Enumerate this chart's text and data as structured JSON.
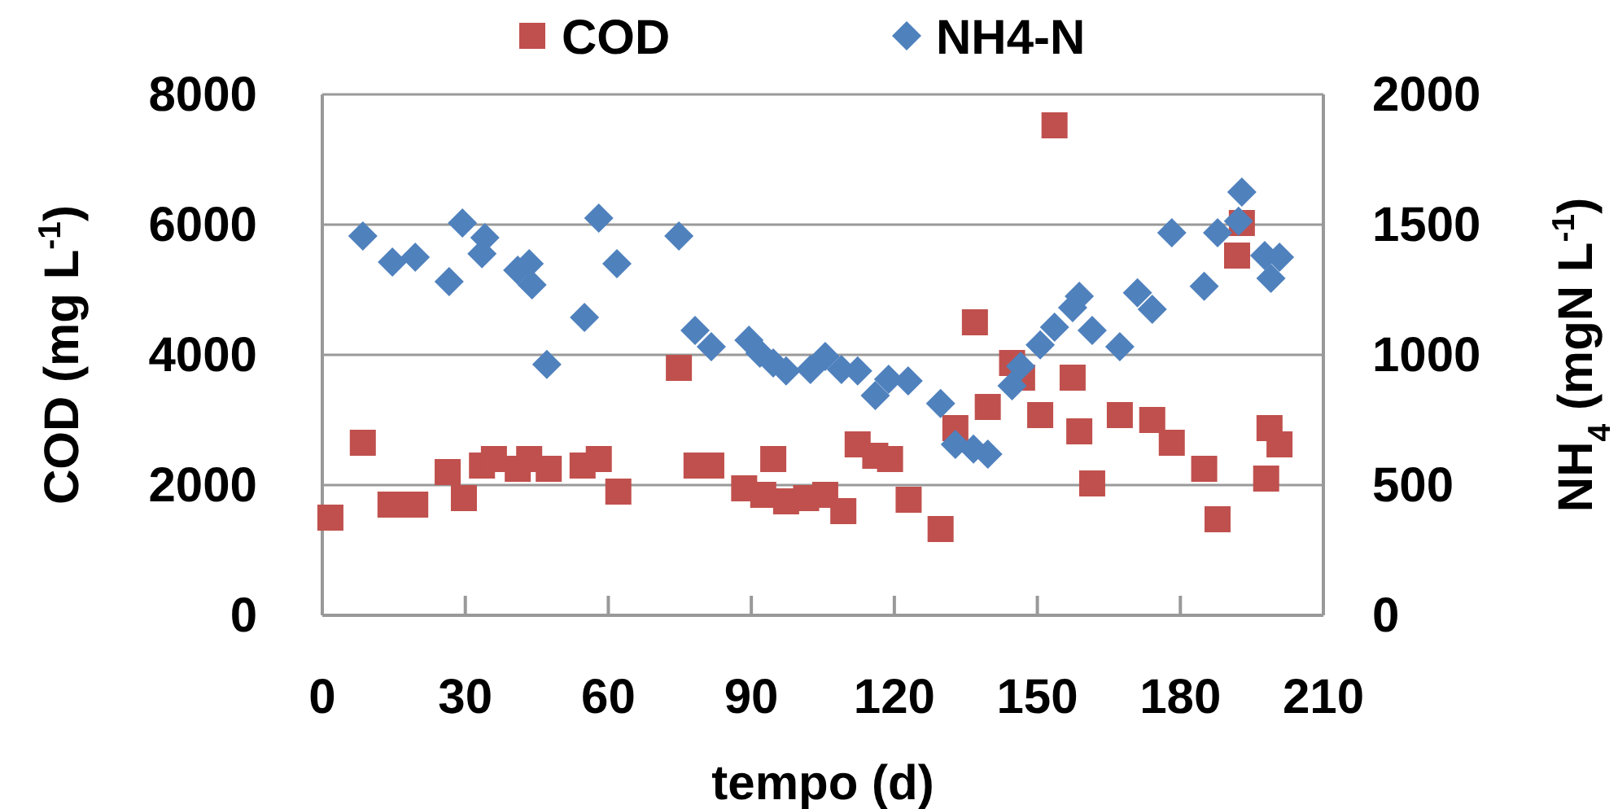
{
  "chart_data": {
    "type": "scatter",
    "xlabel": "tempo (d)",
    "ylabel": "COD  (mg L$^{-1}$)",
    "y2label": "NH$_{4}$ (mgN L$^{-1}$)",
    "xlim": [
      0,
      210
    ],
    "xticks": [
      0,
      30,
      60,
      90,
      120,
      150,
      180,
      210
    ],
    "ylim": [
      0,
      8000
    ],
    "yticks": [
      0,
      2000,
      4000,
      6000,
      8000
    ],
    "y2lim": [
      0,
      2000
    ],
    "y2ticks": [
      0,
      500,
      1000,
      1500,
      2000
    ],
    "grid": "y",
    "legend": "top",
    "series": [
      {
        "name": "COD",
        "color": "#c0504d",
        "marker": "square",
        "x": [
          1.7,
          8.5,
          14.3,
          19.5,
          26.3,
          29.7,
          33.5,
          36,
          41,
          43.4,
          47.5,
          54.6,
          58,
          62.1,
          74.8,
          78.5,
          81.6,
          88.5,
          92.5,
          94.6,
          97.3,
          101.5,
          105.5,
          109.3,
          112.3,
          116,
          119.1,
          123,
          129.7,
          132.8,
          136.9,
          139.6,
          144.7,
          146.8,
          150.6,
          153.6,
          157.4,
          158.8,
          161.5,
          167.3,
          174.1,
          178.2,
          185,
          187.8,
          191.9,
          192.9,
          198,
          198.7,
          200.8
        ],
        "values": [
          1500,
          2650,
          1700,
          1700,
          2200,
          1800,
          2300,
          2400,
          2250,
          2400,
          2250,
          2300,
          2400,
          1900,
          3800,
          2300,
          2300,
          1950,
          1850,
          2400,
          1750,
          1800,
          1850,
          1600,
          2625,
          2450,
          2400,
          1775,
          1325,
          2875,
          4500,
          3200,
          3875,
          3650,
          3075,
          7525,
          3650,
          2825,
          2025,
          3075,
          3000,
          2650,
          2250,
          1475,
          5525,
          6025,
          2100,
          2875,
          2625
        ]
      },
      {
        "name": "NH4-N",
        "color": "#4f81bd",
        "marker": "diamond",
        "axis": "y2",
        "x": [
          8.5,
          14.7,
          19.5,
          26.6,
          29.4,
          33.5,
          34.1,
          41,
          43.4,
          44,
          47.1,
          55,
          58,
          61.8,
          74.8,
          78.2,
          81.6,
          89.5,
          91.8,
          94.6,
          97.3,
          102.4,
          105.5,
          108.9,
          112.3,
          116,
          118.8,
          122.9,
          129.7,
          132.8,
          136.6,
          139.6,
          144.7,
          146.5,
          150.6,
          153.6,
          157.4,
          158.8,
          161.5,
          167.3,
          171,
          174.1,
          178.2,
          185,
          187.8,
          192.2,
          192.9,
          197.7,
          199,
          200.8
        ],
        "values": [
          1456,
          1356,
          1375,
          1281,
          1506,
          1388,
          1450,
          1325,
          1350,
          1269,
          963,
          1144,
          1525,
          1350,
          1456,
          1094,
          1031,
          1056,
          1006,
          969,
          938,
          944,
          994,
          944,
          938,
          844,
          906,
          900,
          813,
          656,
          638,
          619,
          881,
          956,
          1038,
          1106,
          1181,
          1225,
          1094,
          1031,
          1238,
          1175,
          1469,
          1263,
          1469,
          1513,
          1625,
          1381,
          1294,
          1375
        ]
      }
    ]
  }
}
